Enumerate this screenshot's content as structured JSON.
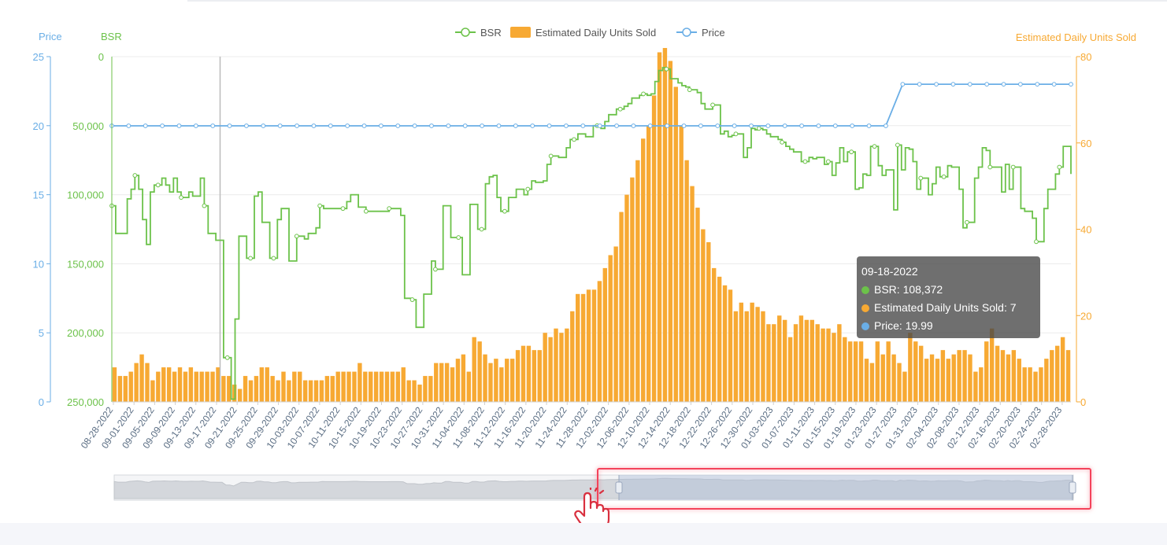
{
  "legend": {
    "bsr": "BSR",
    "units": "Estimated Daily Units Sold",
    "price": "Price"
  },
  "axes": {
    "price_title": "Price",
    "bsr_title": "BSR",
    "units_title": "Estimated Daily Units Sold",
    "price_ticks": [
      "0",
      "5",
      "10",
      "15",
      "20",
      "25"
    ],
    "bsr_ticks": [
      "0",
      "50,000",
      "100,000",
      "150,000",
      "200,000",
      "250,000"
    ],
    "units_ticks": [
      "0",
      "20",
      "40",
      "60",
      "80"
    ]
  },
  "tooltip": {
    "date": "09-18-2022",
    "bsr_label": "BSR:",
    "bsr_value": "108,372",
    "units_label": "Estimated Daily Units Sold:",
    "units_value": "7",
    "price_label": "Price:",
    "price_value": "19.99"
  },
  "colors": {
    "bsr": "#6cc24a",
    "units": "#f7a933",
    "price": "#6aaee6",
    "highlight": "#f4435a"
  },
  "icons": {
    "cursor": "pointer-hand-icon"
  },
  "chart_data": {
    "type": "line+bar",
    "x_start": "08-28-2022",
    "x_end": "03-02-2023",
    "x_tick_labels": [
      "08-28-2022",
      "09-01-2022",
      "09-05-2022",
      "09-09-2022",
      "09-13-2022",
      "09-17-2022",
      "09-21-2022",
      "09-25-2022",
      "09-29-2022",
      "10-03-2022",
      "10-07-2022",
      "10-11-2022",
      "10-15-2022",
      "10-19-2022",
      "10-23-2022",
      "10-27-2022",
      "10-31-2022",
      "11-04-2022",
      "11-08-2022",
      "11-12-2022",
      "11-16-2022",
      "11-20-2022",
      "11-24-2022",
      "11-28-2022",
      "12-02-2022",
      "12-06-2022",
      "12-10-2022",
      "12-14-2022",
      "12-18-2022",
      "12-22-2022",
      "12-26-2022",
      "12-30-2022",
      "01-03-2023",
      "01-07-2023",
      "01-11-2023",
      "01-15-2023",
      "01-19-2023",
      "01-23-2023",
      "01-27-2023",
      "01-31-2023",
      "02-04-2023",
      "02-08-2023",
      "02-12-2023",
      "02-16-2023",
      "02-20-2023",
      "02-24-2023",
      "02-28-2023"
    ],
    "units": [
      8,
      6,
      6,
      7,
      9,
      11,
      9,
      5,
      7,
      8,
      8,
      7,
      8,
      7,
      8,
      7,
      7,
      7,
      7,
      8,
      6,
      6,
      4,
      3,
      6,
      5,
      6,
      8,
      8,
      6,
      5,
      7,
      5,
      7,
      7,
      5,
      5,
      5,
      5,
      6,
      6,
      7,
      7,
      7,
      7,
      9,
      7,
      7,
      7,
      7,
      7,
      7,
      7,
      8,
      5,
      5,
      4,
      6,
      6,
      9,
      9,
      9,
      8,
      10,
      11,
      7,
      15,
      14,
      11,
      9,
      10,
      8,
      10,
      10,
      12,
      13,
      13,
      12,
      12,
      16,
      15,
      17,
      16,
      17,
      21,
      25,
      25,
      26,
      26,
      28,
      31,
      34,
      36,
      44,
      48,
      52,
      56,
      61,
      64,
      71,
      81,
      82,
      79,
      73,
      64,
      56,
      50,
      45,
      40,
      37,
      31,
      29,
      27,
      26,
      21,
      23,
      21,
      23,
      22,
      21,
      18,
      18,
      20,
      19,
      15,
      18,
      20,
      19,
      19,
      18,
      17,
      17,
      16,
      18,
      15,
      14,
      14,
      14,
      10,
      9,
      14,
      11,
      14,
      11,
      9,
      7,
      16,
      14,
      13,
      10,
      11,
      10,
      12,
      10,
      11,
      12,
      12,
      11,
      7,
      8,
      14,
      17,
      13,
      12,
      11,
      12,
      10,
      8,
      8,
      7,
      8,
      10,
      12,
      13,
      15,
      12
    ],
    "bsr": [
      108000,
      128000,
      128000,
      128000,
      103000,
      96000,
      86000,
      96000,
      118000,
      136000,
      98000,
      93000,
      93000,
      88000,
      93000,
      98000,
      88000,
      98000,
      102000,
      102000,
      98000,
      101000,
      101000,
      88000,
      108000,
      128000,
      128000,
      133000,
      133000,
      218000,
      218000,
      248000,
      190000,
      130000,
      130000,
      146000,
      146000,
      101000,
      98000,
      120000,
      120000,
      146000,
      146000,
      118000,
      110000,
      110000,
      148000,
      148000,
      130000,
      130000,
      132000,
      128000,
      128000,
      124000,
      108000,
      110000,
      110000,
      110000,
      110000,
      110000,
      110000,
      105000,
      100000,
      100000,
      109000,
      109000,
      112000,
      112000,
      112000,
      112000,
      112000,
      112000,
      110000,
      110000,
      110000,
      115000,
      175000,
      175000,
      176000,
      196000,
      196000,
      172000,
      172000,
      148000,
      154000,
      154000,
      108000,
      108000,
      131000,
      131000,
      131000,
      158000,
      158000,
      107000,
      107000,
      125000,
      125000,
      92000,
      87000,
      86000,
      102000,
      112000,
      112000,
      102000,
      102000,
      96000,
      96000,
      100000,
      96000,
      90000,
      91000,
      91000,
      90000,
      78000,
      72000,
      72000,
      73000,
      73000,
      66000,
      60000,
      60000,
      56000,
      56000,
      58000,
      58000,
      50000,
      50000,
      52000,
      47000,
      42000,
      42000,
      38000,
      38000,
      36000,
      34000,
      30000,
      30000,
      28000,
      27000,
      28000,
      27000,
      18000,
      10000,
      8000,
      9000,
      16000,
      16000,
      19000,
      21000,
      22000,
      24000,
      24000,
      26000,
      34000,
      38000,
      38000,
      35000,
      35000,
      56000,
      54000,
      58000,
      57000,
      56000,
      56000,
      73000,
      66000,
      52000,
      53000,
      52000,
      53000,
      56000,
      58000,
      58000,
      60000,
      62000,
      65000,
      67000,
      69000,
      69000,
      76000,
      76000,
      73000,
      74000,
      73000,
      73000,
      78000,
      76000,
      86000,
      77000,
      66000,
      76000,
      69000,
      69000,
      96000,
      95000,
      85000,
      86000,
      65000,
      65000,
      79000,
      86000,
      82000,
      82000,
      111000,
      64000,
      82000,
      66000,
      67000,
      76000,
      96000,
      88000,
      88000,
      100000,
      92000,
      80000,
      87000,
      87000,
      79000,
      80000,
      80000,
      96000,
      124000,
      120000,
      120000,
      88000,
      80000,
      66000,
      68000,
      80000,
      80000,
      80000,
      98000,
      78000,
      96000,
      80000,
      80000,
      110000,
      112000,
      112000,
      117000,
      134000,
      134000,
      110000,
      96000,
      96000,
      85000,
      80000,
      65000,
      65000,
      85000
    ],
    "price": [
      19.99,
      19.99,
      19.99,
      19.99,
      19.99,
      19.99,
      19.99,
      19.99,
      19.99,
      19.99,
      19.99,
      19.99,
      19.99,
      19.99,
      19.99,
      19.99,
      19.99,
      19.99,
      19.99,
      19.99,
      19.99,
      19.99,
      19.99,
      19.99,
      19.99,
      19.99,
      19.99,
      19.99,
      19.99,
      19.99,
      19.99,
      19.99,
      19.99,
      19.99,
      19.99,
      19.99,
      19.99,
      19.99,
      19.99,
      19.99,
      19.99,
      19.99,
      19.99,
      19.99,
      19.99,
      19.99,
      19.99,
      23.0,
      23.0,
      23.0,
      23.0,
      23.0,
      23.0,
      23.0,
      23.0,
      23.0,
      23.0,
      23.0
    ],
    "price_y_range": [
      0,
      25
    ],
    "bsr_y_range": [
      0,
      250000
    ],
    "bsr_inverted": true,
    "units_y_range": [
      0,
      80
    ],
    "legend_position": "top-center",
    "grid": true
  }
}
